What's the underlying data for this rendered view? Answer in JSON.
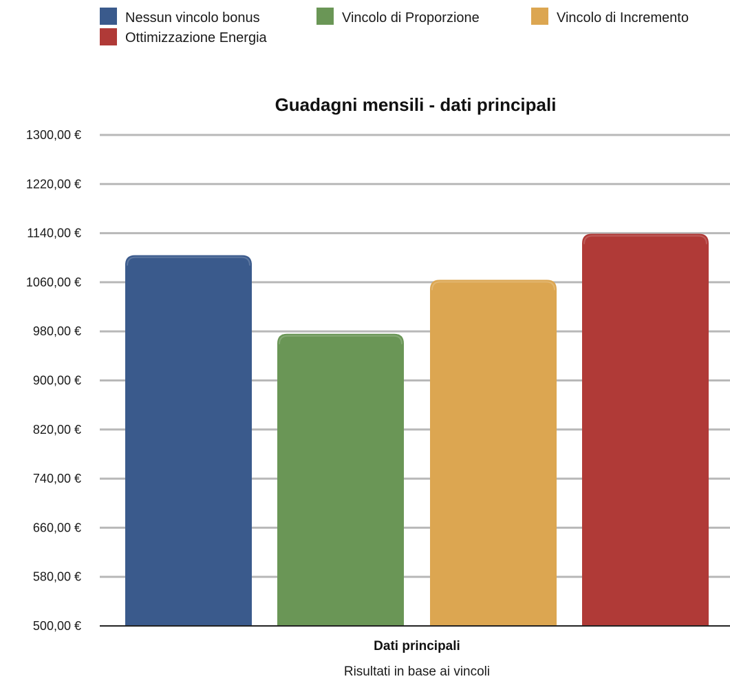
{
  "chart_data": {
    "type": "bar",
    "title": "Guadagni mensili - dati principali",
    "categories": [
      "Dati principali"
    ],
    "xlabel": "Risultati in base ai vincoli",
    "ylabel": "",
    "ylim": [
      500,
      1300
    ],
    "y_ticks": [
      500,
      580,
      660,
      740,
      820,
      900,
      980,
      1060,
      1140,
      1220,
      1300
    ],
    "y_tick_labels": [
      "500,00 €",
      "580,00 €",
      "660,00 €",
      "740,00 €",
      "820,00 €",
      "900,00 €",
      "980,00 €",
      "1060,00 €",
      "1140,00 €",
      "1220,00 €",
      "1300,00 €"
    ],
    "grid": true,
    "legend_position": "top",
    "series": [
      {
        "name": "Nessun vincolo bonus",
        "color": "#3a5a8c",
        "values": [
          1104
        ]
      },
      {
        "name": "Vincolo di Proporzione",
        "color": "#6a9656",
        "values": [
          976
        ]
      },
      {
        "name": "Vincolo di Incremento",
        "color": "#dca651",
        "values": [
          1064
        ]
      },
      {
        "name": "Ottimizzazione Energia",
        "color": "#b03a37",
        "values": [
          1139
        ]
      }
    ]
  }
}
